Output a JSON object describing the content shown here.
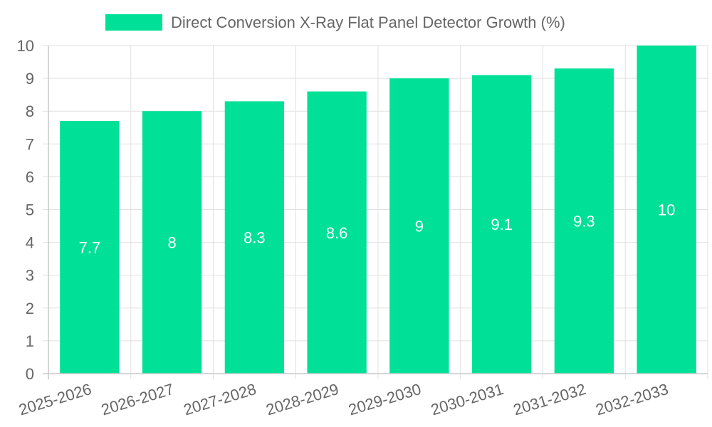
{
  "chart_data": {
    "type": "bar",
    "title": "",
    "xlabel": "",
    "ylabel": "",
    "categories": [
      "2025-2026",
      "2026-2027",
      "2027-2028",
      "2028-2029",
      "2029-2030",
      "2030-2031",
      "2031-2032",
      "2032-2033"
    ],
    "series": [
      {
        "name": "Direct Conversion X-Ray Flat Panel Detector Growth (%)",
        "values": [
          7.7,
          8,
          8.3,
          8.6,
          9,
          9.1,
          9.3,
          10
        ],
        "color": "#00e096"
      }
    ],
    "ylim": [
      0,
      10
    ],
    "y_ticks": [
      "0",
      "1",
      "2",
      "3",
      "4",
      "5",
      "6",
      "7",
      "8",
      "9",
      "10"
    ],
    "grid": true,
    "legend_position": "top-center",
    "data_label_color": "#ffffff",
    "grid_color": "#e0e0e0",
    "axis_color": "#c8c8c8",
    "text_color": "#666666"
  }
}
